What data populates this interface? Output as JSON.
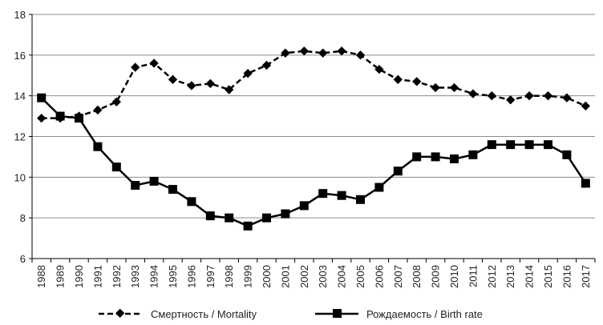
{
  "chart_data": {
    "type": "line",
    "title": "",
    "xlabel": "",
    "ylabel": "",
    "x": [
      "1988",
      "1989",
      "1990",
      "1991",
      "1992",
      "1993",
      "1994",
      "1995",
      "1996",
      "1997",
      "1998",
      "1999",
      "2000",
      "2001",
      "2002",
      "2003",
      "2004",
      "2005",
      "2006",
      "2007",
      "2008",
      "2009",
      "2010",
      "2011",
      "2012",
      "2013",
      "2014",
      "2015",
      "2016",
      "2017"
    ],
    "ylim": [
      6,
      18
    ],
    "yticks": [
      6,
      8,
      10,
      12,
      14,
      16,
      18
    ],
    "grid": "horizontal",
    "legend_position": "bottom",
    "series": [
      {
        "name": "Смертность / Mortality",
        "style": "dashed",
        "marker": "diamond",
        "color": "#000000",
        "values": [
          12.9,
          12.9,
          13.0,
          13.3,
          13.7,
          15.4,
          15.6,
          14.8,
          14.5,
          14.6,
          14.3,
          15.1,
          15.5,
          16.1,
          16.2,
          16.1,
          16.2,
          16.0,
          15.3,
          14.8,
          14.7,
          14.4,
          14.4,
          14.1,
          14.0,
          13.8,
          14.0,
          14.0,
          13.9,
          13.5
        ]
      },
      {
        "name": "Рождаемость / Birth rate",
        "style": "solid",
        "marker": "square",
        "color": "#000000",
        "values": [
          13.9,
          13.0,
          12.9,
          11.5,
          10.5,
          9.6,
          9.8,
          9.4,
          8.8,
          8.1,
          8.0,
          7.6,
          8.0,
          8.2,
          8.6,
          9.2,
          9.1,
          8.9,
          9.5,
          10.3,
          11.0,
          11.0,
          10.9,
          11.1,
          11.6,
          11.6,
          11.6,
          11.6,
          11.1,
          9.7
        ]
      }
    ]
  }
}
